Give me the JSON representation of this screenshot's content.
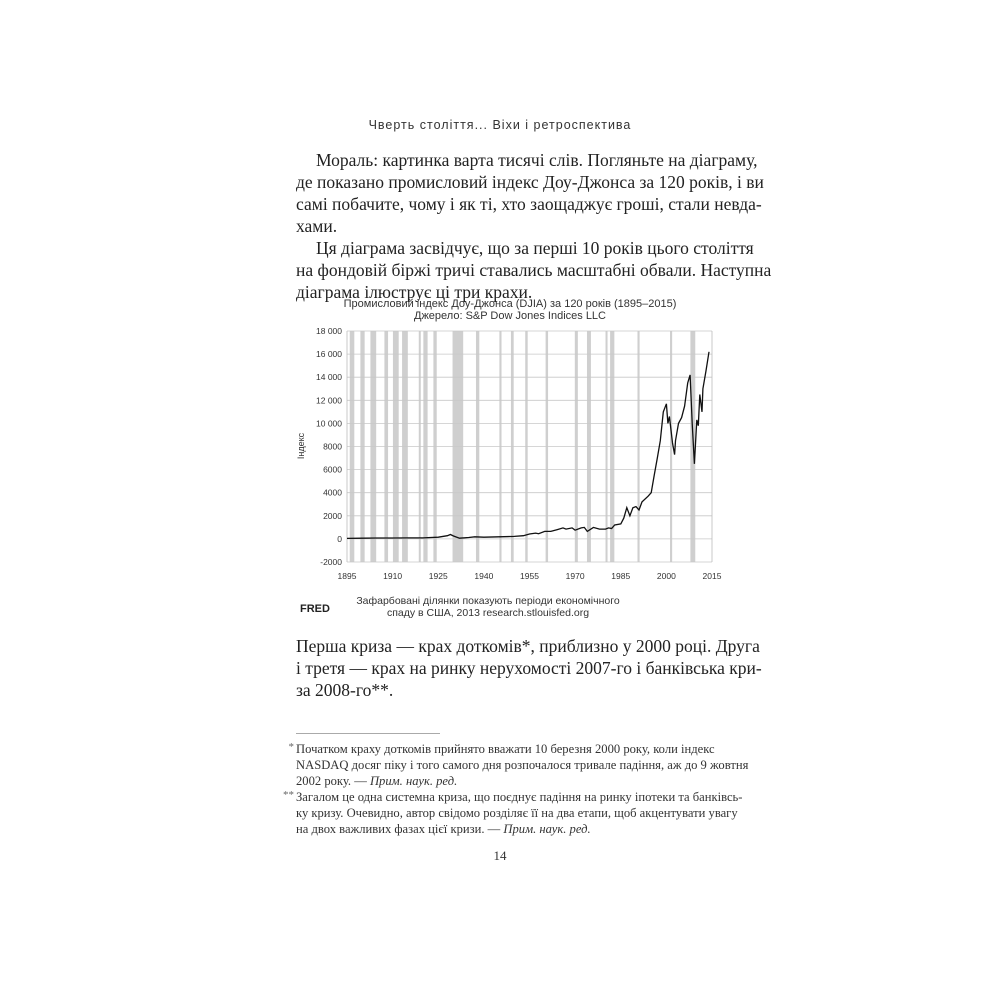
{
  "running_header": "Чверть століття... Віхи і ретроспектива",
  "paragraph1": [
    "Мораль: картинка варта тисячі слів. Погляньте на діаграму,",
    "де показано промисловий індекс Доу-Джонса за 120 років, і ви",
    "самі побачите, чому і як ті, хто заощаджує гроші, стали невда-",
    "хами."
  ],
  "paragraph2": [
    "Ця діаграма засвідчує, що за перші 10 років цього століття",
    "на фондовій біржі тричі ставались масштабні обвали. Наступна",
    "діаграма ілюструє ці три крахи."
  ],
  "paragraph3": [
    "Перша криза — крах доткомів*, приблизно у 2000 році. Друга",
    "і третя — крах на ринку нерухомості 2007-го і банківська кри-",
    "за 2008-го**."
  ],
  "footnotes": [
    {
      "mark": "*",
      "lines": [
        "Початком краху доткомів прийнято вважати 10 березня 2000 року, коли індекс",
        "NASDAQ досяг піку і того самого дня розпочалося тривале падіння, аж до 9 жовтня",
        "2002 року. — "
      ],
      "note": "Прим. наук. ред."
    },
    {
      "mark": "**",
      "lines": [
        "Загалом це одна системна криза, що поєднує падіння на ринку іпотеки та банківсь-",
        "ку кризу. Очевидно, автор свідомо розділяє її на два етапи, щоб акцентувати увагу",
        "на двох важливих фазах цієї кризи. — "
      ],
      "note": "Прим. наук. ред."
    }
  ],
  "page_number": "14",
  "chart_data": {
    "type": "line",
    "title": "Промисловий індекс Доу-Джонса (DJIA) за 120 років (1895–2015)",
    "subtitle": "Джерело: S&P Dow Jones Indices LLC",
    "xlabel": "",
    "ylabel": "Індекс",
    "xlim": [
      1895,
      2015
    ],
    "ylim": [
      -2000,
      18000
    ],
    "x_ticks": [
      "1895",
      "1910",
      "1925",
      "1940",
      "1955",
      "1970",
      "1985",
      "2000",
      "2015"
    ],
    "y_ticks": [
      "18 000",
      "16 000",
      "14 000",
      "12 000",
      "10 000",
      "8000",
      "6000",
      "4000",
      "2000",
      "0",
      "-2000"
    ],
    "grid": true,
    "line_color": "#111111",
    "band_color": "#cfcfcf",
    "series": [
      {
        "x": [
          1895,
          1900,
          1905,
          1910,
          1915,
          1920,
          1925,
          1928,
          1929,
          1930,
          1932,
          1935,
          1937,
          1940,
          1945,
          1950,
          1953,
          1955,
          1957,
          1958,
          1960,
          1962,
          1964,
          1966,
          1967,
          1969,
          1970,
          1972,
          1973,
          1974,
          1976,
          1978,
          1980,
          1981,
          1982,
          1983,
          1985,
          1986,
          1987,
          1988,
          1989,
          1990,
          1991,
          1992,
          1994,
          1995,
          1996,
          1997,
          1998,
          1999,
          2000,
          2000.5,
          2001,
          2001.5,
          2002,
          2002.7,
          2003,
          2004,
          2005,
          2006,
          2007,
          2007.8,
          2008.5,
          2009.2,
          2010,
          2010.5,
          2011,
          2011.7,
          2012,
          2013,
          2014
        ],
        "y": [
          40,
          60,
          80,
          80,
          90,
          90,
          150,
          280,
          380,
          250,
          60,
          120,
          180,
          150,
          180,
          220,
          280,
          420,
          500,
          450,
          650,
          650,
          800,
          950,
          850,
          950,
          750,
          950,
          1000,
          650,
          1000,
          850,
          850,
          950,
          900,
          1200,
          1300,
          1800,
          2700,
          2000,
          2700,
          2800,
          2500,
          3200,
          3700,
          4000,
          5500,
          7000,
          8500,
          11000,
          11700,
          10000,
          10600,
          9500,
          8300,
          7300,
          8500,
          10000,
          10500,
          11500,
          13500,
          14200,
          10000,
          6500,
          10300,
          9800,
          12500,
          11000,
          13000,
          14500,
          16200
        ]
      }
    ],
    "recession_bands": [
      [
        1895.9,
        1897.4
      ],
      [
        1899.4,
        1900.8
      ],
      [
        1902.7,
        1904.6
      ],
      [
        1907.3,
        1908.5
      ],
      [
        1910.1,
        1912.0
      ],
      [
        1913.1,
        1915.0
      ],
      [
        1918.6,
        1919.2
      ],
      [
        1920.1,
        1921.5
      ],
      [
        1923.4,
        1924.5
      ],
      [
        1929.7,
        1933.2
      ],
      [
        1937.4,
        1938.5
      ],
      [
        1945.1,
        1945.8
      ],
      [
        1948.9,
        1949.8
      ],
      [
        1953.6,
        1954.4
      ],
      [
        1960.3,
        1961.1
      ],
      [
        1969.9,
        1970.9
      ],
      [
        1973.9,
        1975.2
      ],
      [
        1980.0,
        1980.5
      ],
      [
        1981.5,
        1982.9
      ],
      [
        1990.5,
        1991.2
      ],
      [
        2001.2,
        2001.9
      ],
      [
        2007.9,
        2009.5
      ]
    ],
    "footer_text": [
      "Зафарбовані ділянки показують періоди економічного",
      "спаду в США, 2013 research.stlouisfed.org"
    ],
    "logo": "FRED"
  }
}
